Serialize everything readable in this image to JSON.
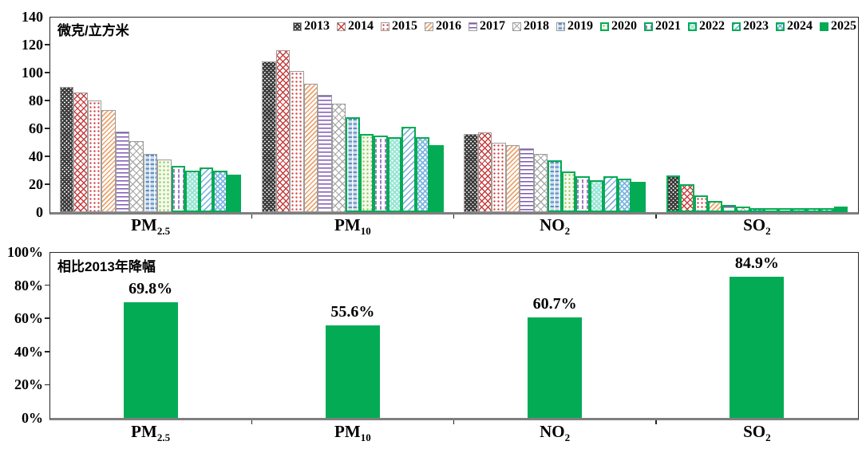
{
  "colors": {
    "accent_green": "#04ab55",
    "bar_border_gray": "#9b9b9b",
    "baseline_gray": "#7f7f7f",
    "axis_black": "#262626",
    "text": "#000000"
  },
  "legend": {
    "position": "top-right-inside",
    "green_border_years": [
      "2020",
      "2021",
      "2022",
      "2023",
      "2024",
      "2025"
    ]
  },
  "chart_data": [
    {
      "type": "bar",
      "unit_label": "微克/立方米",
      "ylabel": "微克/立方米",
      "ylim": [
        0,
        140
      ],
      "yticks": [
        0,
        20,
        40,
        60,
        80,
        100,
        120,
        140
      ],
      "grid": false,
      "legend_position": "top-right-inside",
      "categories": [
        "PM2.5",
        "PM10",
        "NO2",
        "SO2"
      ],
      "categories_rich": [
        {
          "base": "PM",
          "sub": "2.5"
        },
        {
          "base": "PM",
          "sub": "10"
        },
        {
          "base": "NO",
          "sub": "2"
        },
        {
          "base": "SO",
          "sub": "2"
        }
      ],
      "series": [
        {
          "name": "2013",
          "pattern": "dark-gray-checker",
          "values": [
            89.5,
            108,
            56,
            26.5
          ],
          "green_border": [
            false,
            false,
            false,
            true
          ]
        },
        {
          "name": "2014",
          "pattern": "red-crosshatch",
          "values": [
            86,
            116,
            57,
            20
          ],
          "green_border": [
            false,
            false,
            false,
            true
          ]
        },
        {
          "name": "2015",
          "pattern": "red-dots",
          "values": [
            80,
            101,
            50,
            12
          ],
          "green_border": [
            false,
            false,
            false,
            true
          ]
        },
        {
          "name": "2016",
          "pattern": "orange-diagonal",
          "values": [
            73,
            92,
            48,
            8
          ],
          "green_border": [
            false,
            false,
            false,
            true
          ]
        },
        {
          "name": "2017",
          "pattern": "purple-horizontal-lines",
          "values": [
            58,
            84,
            46,
            5
          ],
          "green_border": [
            false,
            false,
            false,
            true
          ]
        },
        {
          "name": "2018",
          "pattern": "gray-diagonal-crosshatch",
          "values": [
            51,
            78,
            42,
            4
          ],
          "green_border": [
            false,
            false,
            false,
            true
          ]
        },
        {
          "name": "2019",
          "pattern": "blue-horizontal-dashes",
          "values": [
            42,
            68,
            37,
            3
          ],
          "green_border": [
            false,
            true,
            true,
            true
          ]
        },
        {
          "name": "2020",
          "pattern": "green-dots",
          "values": [
            38,
            56,
            29,
            3
          ],
          "green_border": [
            false,
            true,
            true,
            true
          ]
        },
        {
          "name": "2021",
          "pattern": "purple-vertical-dashes",
          "values": [
            33,
            55,
            26,
            3
          ],
          "green_border": [
            true,
            true,
            true,
            true
          ]
        },
        {
          "name": "2022",
          "pattern": "teal-fine-checker",
          "values": [
            30,
            54,
            23,
            3
          ],
          "green_border": [
            true,
            true,
            true,
            true
          ]
        },
        {
          "name": "2023",
          "pattern": "blue-diagonal-lines",
          "values": [
            32,
            61,
            26,
            3
          ],
          "green_border": [
            true,
            true,
            true,
            true
          ]
        },
        {
          "name": "2024",
          "pattern": "blue-diagonal-checker",
          "values": [
            30,
            54,
            24,
            3
          ],
          "green_border": [
            true,
            true,
            true,
            true
          ]
        },
        {
          "name": "2025",
          "pattern": "solid-green",
          "values": [
            27,
            48,
            22,
            4
          ],
          "green_border": [
            true,
            true,
            true,
            true
          ]
        }
      ]
    },
    {
      "type": "bar",
      "annotation": "相比2013年降幅",
      "ylim": [
        0,
        100
      ],
      "ytick_values": [
        0,
        20,
        40,
        60,
        80,
        100
      ],
      "ytick_labels": [
        "0%",
        "20%",
        "40%",
        "60%",
        "80%",
        "100%"
      ],
      "grid": false,
      "categories": [
        "PM2.5",
        "PM10",
        "NO2",
        "SO2"
      ],
      "categories_rich": [
        {
          "base": "PM",
          "sub": "2.5"
        },
        {
          "base": "PM",
          "sub": "10"
        },
        {
          "base": "NO",
          "sub": "2"
        },
        {
          "base": "SO",
          "sub": "2"
        }
      ],
      "values": [
        69.8,
        55.6,
        60.7,
        84.9
      ],
      "value_labels": [
        "69.8%",
        "55.6%",
        "60.7%",
        "84.9%"
      ],
      "bar_color": "#04ab55"
    }
  ]
}
